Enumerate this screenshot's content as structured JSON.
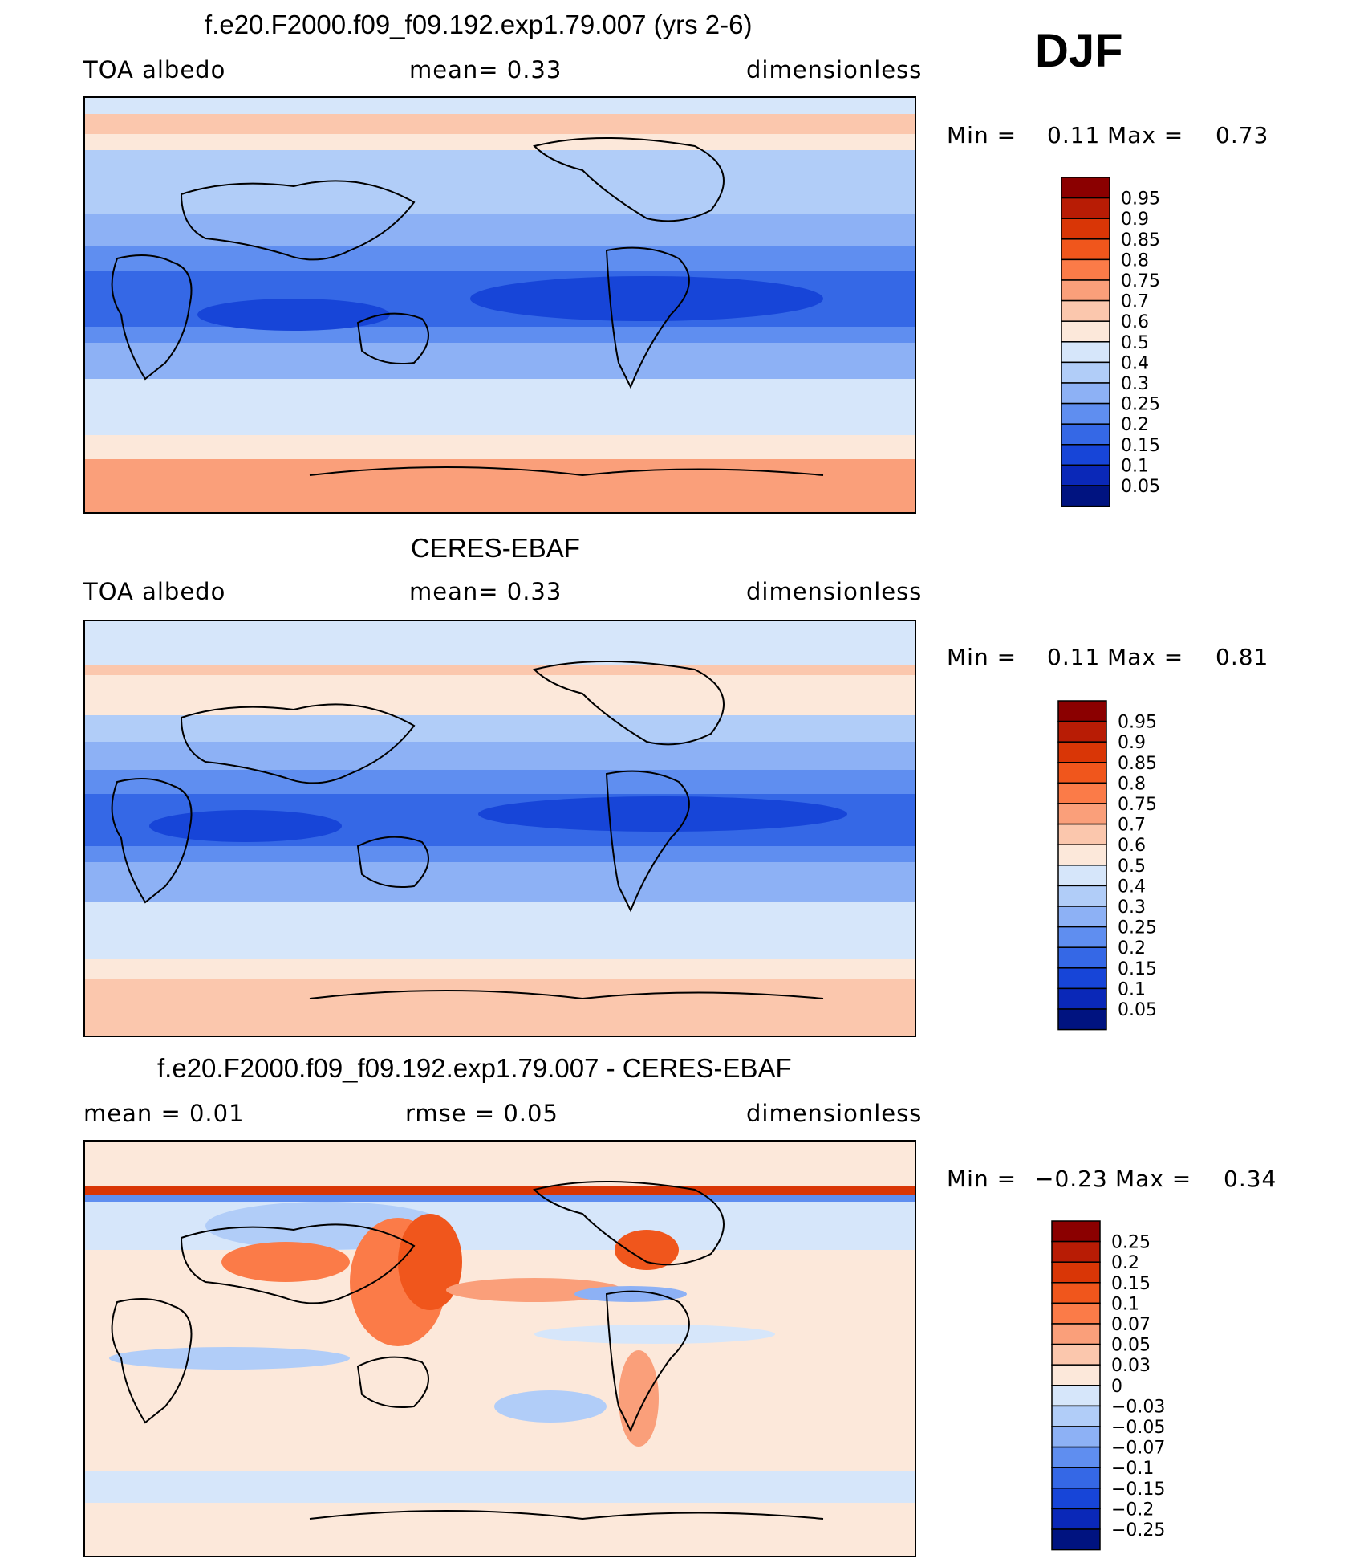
{
  "season": "DJF",
  "panels": [
    {
      "id": "model",
      "title": "f.e20.F2000.f09_f09.192.exp1.79.007 (yrs 2-6)",
      "left_label": "TOA  albedo",
      "center_label": "mean=    0.33",
      "right_label": "dimensionless",
      "stats": {
        "min_label": "Min  =",
        "min_value": "0.11",
        "max_label": "Max  =",
        "max_value": "0.73"
      },
      "colorbar": {
        "levels": [
          "0.95",
          "0.9",
          "0.85",
          "0.8",
          "0.75",
          "0.7",
          "0.6",
          "0.5",
          "0.4",
          "0.3",
          "0.25",
          "0.2",
          "0.15",
          "0.1",
          "0.05"
        ],
        "colors": [
          "#8b0000",
          "#b81c05",
          "#d93606",
          "#f0561c",
          "#fb7b48",
          "#fa9f7a",
          "#fbc7ad",
          "#fce8da",
          "#d6e6fa",
          "#b1cdf8",
          "#8db1f5",
          "#5f8ef0",
          "#3568e6",
          "#1745d8",
          "#0a28b8",
          "#001380"
        ]
      }
    },
    {
      "id": "obs",
      "title": "CERES-EBAF",
      "left_label": "TOA  albedo",
      "center_label": "mean=    0.33",
      "right_label": "dimensionless",
      "stats": {
        "min_label": "Min  =",
        "min_value": "0.11",
        "max_label": "Max  =",
        "max_value": "0.81"
      },
      "colorbar": {
        "levels": [
          "0.95",
          "0.9",
          "0.85",
          "0.8",
          "0.75",
          "0.7",
          "0.6",
          "0.5",
          "0.4",
          "0.3",
          "0.25",
          "0.2",
          "0.15",
          "0.1",
          "0.05"
        ],
        "colors": [
          "#8b0000",
          "#b81c05",
          "#d93606",
          "#f0561c",
          "#fb7b48",
          "#fa9f7a",
          "#fbc7ad",
          "#fce8da",
          "#d6e6fa",
          "#b1cdf8",
          "#8db1f5",
          "#5f8ef0",
          "#3568e6",
          "#1745d8",
          "#0a28b8",
          "#001380"
        ]
      }
    },
    {
      "id": "diff",
      "title": "f.e20.F2000.f09_f09.192.exp1.79.007 - CERES-EBAF",
      "left_label": "mean  =     0.01",
      "center_label": "rmse  =     0.05",
      "right_label": "dimensionless",
      "stats": {
        "min_label": "Min  =",
        "min_value": "−0.23",
        "max_label": "Max  =",
        "max_value": "0.34"
      },
      "colorbar": {
        "levels": [
          "0.25",
          "0.2",
          "0.15",
          "0.1",
          "0.07",
          "0.05",
          "0.03",
          "0",
          "−0.03",
          "−0.05",
          "−0.07",
          "−0.1",
          "−0.15",
          "−0.2",
          "−0.25"
        ],
        "colors": [
          "#8b0000",
          "#b81c05",
          "#d93606",
          "#f0561c",
          "#fb7b48",
          "#fa9f7a",
          "#fbc7ad",
          "#fce8da",
          "#d6e6fa",
          "#b1cdf8",
          "#8db1f5",
          "#5f8ef0",
          "#3568e6",
          "#1745d8",
          "#0a28b8",
          "#001380"
        ]
      }
    }
  ]
}
